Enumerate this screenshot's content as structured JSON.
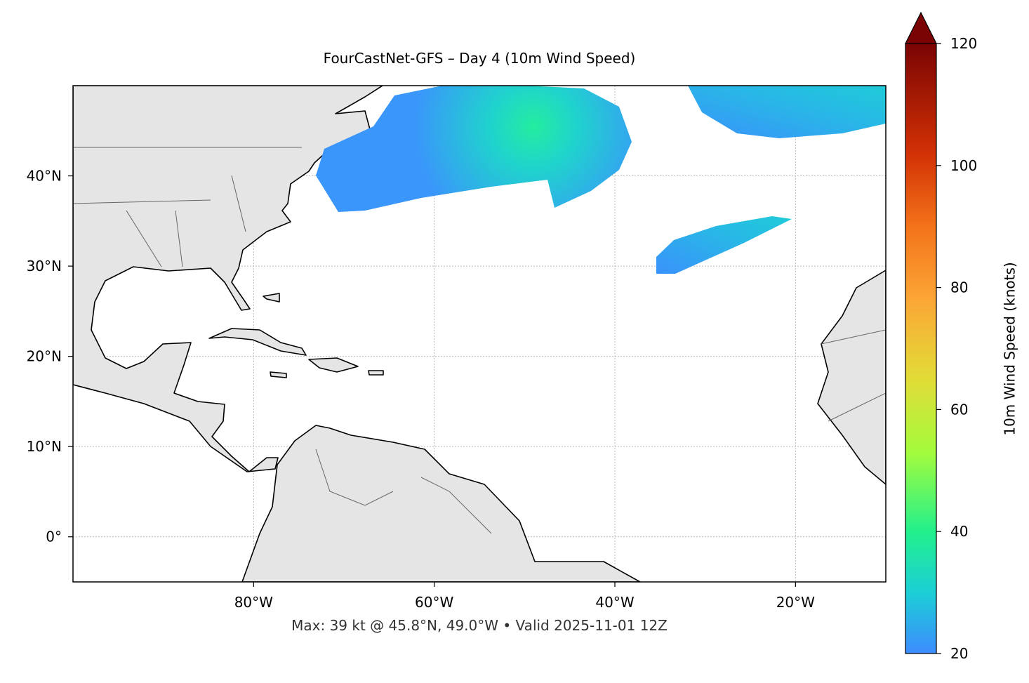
{
  "chart_data": {
    "type": "map",
    "title": "FourCastNet-GFS – Day 4 (10m Wind Speed)",
    "footnote": "Max: 39 kt @ 45.8°N, 49.0°W • Valid 2025-11-01 12Z",
    "xlim": [
      -100,
      -10
    ],
    "ylim": [
      -5,
      50
    ],
    "xticks": [
      {
        "value": -80,
        "label": "80°W"
      },
      {
        "value": -60,
        "label": "60°W"
      },
      {
        "value": -40,
        "label": "40°W"
      },
      {
        "value": -20,
        "label": "20°W"
      }
    ],
    "yticks": [
      {
        "value": 0,
        "label": "0°"
      },
      {
        "value": 10,
        "label": "10°N"
      },
      {
        "value": 20,
        "label": "20°N"
      },
      {
        "value": 30,
        "label": "30°N"
      },
      {
        "value": 40,
        "label": "40°N"
      }
    ],
    "grid": true,
    "colorbar": {
      "label": "10m Wind Speed (knots)",
      "lim": [
        20,
        120
      ],
      "ticks": [
        20,
        40,
        60,
        80,
        100,
        120
      ],
      "extend": "max"
    }
  }
}
